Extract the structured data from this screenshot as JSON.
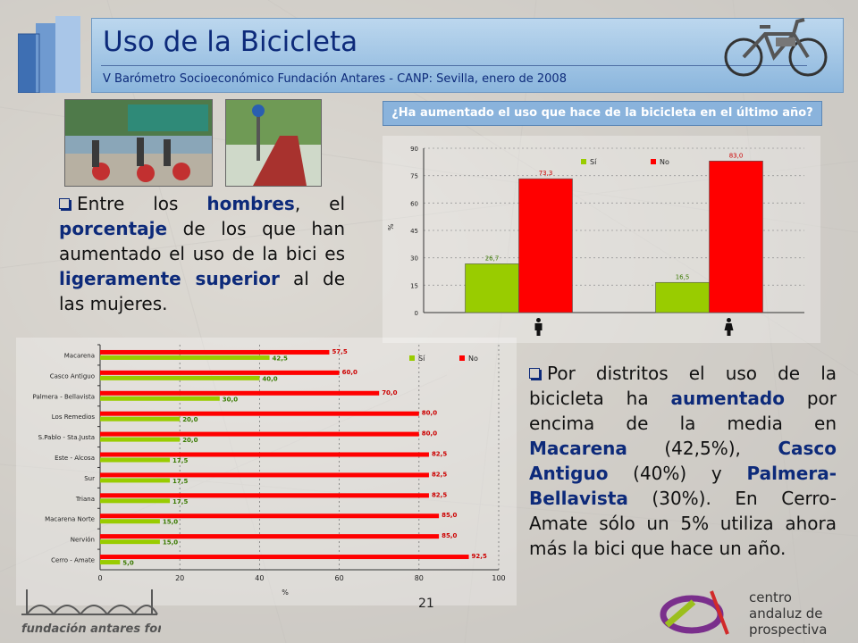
{
  "header": {
    "title": "Uso de la Bicicleta",
    "subtitle": "V Barómetro Socioeconómico Fundación Antares - CANP: Sevilla, enero de 2008"
  },
  "question": "¿Ha aumentado el uso que hace de la bicicleta en el último año?",
  "text1": {
    "p1": "Entre los ",
    "b1": "hombres",
    "p2": ", el ",
    "b2": "porcentaje",
    "p3": " de los que han aumentado el uso de la bici es ",
    "b3": "ligeramente superior",
    "p4": " al de las mujeres."
  },
  "text2": {
    "p1": "Por distritos el uso de la bicicleta ha ",
    "b1": "aumentado",
    "p2": " por encima de la media en ",
    "b2": "Macarena",
    "p3": " (42,5%), ",
    "b3": "Casco Antiguo",
    "p4": " (40%) y ",
    "b4": "Palmera-Bellavista",
    "p5": " (30%). En Cerro-Amate sólo un 5% utiliza ahora más la bici que hace un año."
  },
  "page_number": "21",
  "logos": {
    "left_text": "fundación antares foro",
    "right_line1": "centro",
    "right_line2": "andaluz de",
    "right_line3": "prospectiva"
  },
  "colors": {
    "si": "#99cc00",
    "no": "#ff0000",
    "header": "#8bb6dd",
    "title": "#0d2a7a"
  },
  "chart_data": [
    {
      "type": "bar",
      "categories": [
        "hombre-icon",
        "mujer-icon"
      ],
      "series": [
        {
          "name": "Sí",
          "values": [
            26.7,
            16.5
          ],
          "labels": [
            "26,7",
            "16,5"
          ]
        },
        {
          "name": "No",
          "values": [
            73.3,
            83.0
          ],
          "labels": [
            "73,3",
            "83,0"
          ]
        }
      ],
      "ylabel": "%",
      "ylim": [
        0,
        90
      ],
      "yticks": [
        0,
        15,
        30,
        45,
        60,
        75,
        90
      ],
      "legend": "top"
    },
    {
      "type": "bar",
      "orientation": "horizontal",
      "categories": [
        "Macarena",
        "Casco Antiguo",
        "Palmera - Bellavista",
        "Los Remedios",
        "S.Pablo - Sta.Justa",
        "Este - Alcosa",
        "Sur",
        "Triana",
        "Macarena Norte",
        "Nervión",
        "Cerro - Amate"
      ],
      "series": [
        {
          "name": "Sí",
          "values": [
            42.5,
            40.0,
            30.0,
            20.0,
            20.0,
            17.5,
            17.5,
            17.5,
            15.0,
            15.0,
            5.0
          ],
          "labels": [
            "42,5",
            "40,0",
            "30,0",
            "20,0",
            "20,0",
            "17,5",
            "17,5",
            "17,5",
            "15,0",
            "15,0",
            "5,0"
          ]
        },
        {
          "name": "No",
          "values": [
            57.5,
            60.0,
            70.0,
            80.0,
            80.0,
            82.5,
            82.5,
            82.5,
            85.0,
            85.0,
            92.5
          ],
          "labels": [
            "57,5",
            "60,0",
            "70,0",
            "80,0",
            "80,0",
            "82,5",
            "82,5",
            "82,5",
            "85,0",
            "85,0",
            "92,5"
          ]
        }
      ],
      "xlabel": "%",
      "xlim": [
        0,
        100
      ],
      "xticks": [
        0,
        20,
        40,
        60,
        80,
        100
      ],
      "legend": "top-right"
    }
  ]
}
